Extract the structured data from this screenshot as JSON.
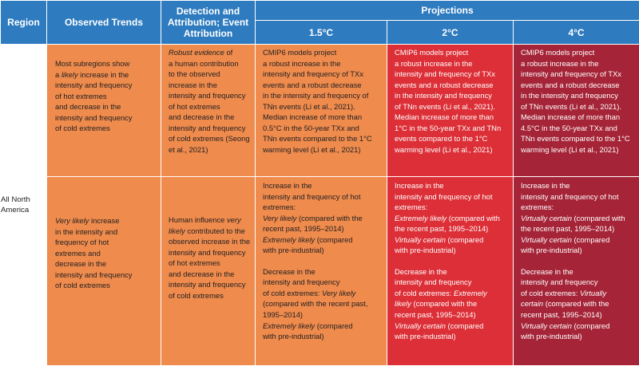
{
  "headers": {
    "region": "Region",
    "observed": "Observed Trends",
    "detection_line1": "Detection and",
    "detection_line2": "Attribution; Event",
    "detection_line3": "Attribution",
    "projections": "Projections",
    "p15": "1.5°C",
    "p2": "2°C",
    "p4": "4°C"
  },
  "region_line1": "All North",
  "region_line2": "America",
  "row1": {
    "observed": [
      "Most subregions show",
      "a likely increase in the",
      "intensity and frequency",
      "of hot extremes",
      "and decrease in the",
      "intensity and frequency",
      "of cold extremes"
    ],
    "detection": [
      "Robust evidence of",
      "a human contribution",
      "to the observed",
      "increase in the",
      "intensity and frequency",
      "of hot extremes",
      "and decrease in the",
      "intensity and frequency",
      "of cold extremes (Seong",
      "et al., 2021)"
    ],
    "p15": [
      "CMIP6 models project",
      "a robust increase in the",
      "intensity and frequency of TXx",
      "events and a robust decrease",
      "in the intensity and frequency of",
      "TNn events (Li et al., 2021).",
      "Median increase of more than",
      "0.5°C in the 50-year TXx and",
      "TNn events compared to the 1°C",
      "warming level (Li et al., 2021)"
    ],
    "p2": [
      "CMIP6 models project",
      "a robust increase in the",
      "intensity and frequency of TXx",
      "events and a robust decrease",
      "in the intensity and frequency",
      "of TNn events (Li et al., 2021).",
      "Median increase of more than",
      "1°C in the 50-year TXx and TNn",
      "events compared to the 1°C",
      "warming level (Li et al., 2021)"
    ],
    "p4": [
      "CMIP6 models project",
      "a robust increase in the",
      "intensity and frequency of TXx",
      "events and a robust decrease",
      "in the intensity and frequency",
      "of TNn events (Li et al., 2021).",
      "Median increase of more than",
      "4.5°C in the 50-year TXx and",
      "TNn events compared to the 1°C",
      "warming level (Li et al., 2021)"
    ]
  },
  "row2": {
    "observed": [
      "Very likely increase",
      "in the intensity and",
      "frequency of hot",
      "extremes and",
      "decrease in the",
      "intensity and frequency",
      "of cold extremes"
    ],
    "detection": [
      "Human influence very",
      "likely contributed to the",
      "observed increase in the",
      "intensity and frequency",
      "of hot extremes",
      "and decrease in the",
      "intensity and frequency",
      "of cold extremes"
    ],
    "p15": {
      "a": [
        "Increase in the",
        "intensity and frequency of hot",
        "extremes:"
      ],
      "a_level": "Very likely",
      "a_rest1": " (compared with the",
      "a_rest2": "recent past, 1995–2014)",
      "a_level2": "Extremely likely",
      "a_rest3": " (compared",
      "a_rest4": "with pre-industrial)",
      "b": [
        "Decrease in the",
        "intensity and frequency"
      ],
      "b_pre": "of cold extremes: ",
      "b_level": "Very likely",
      "b_rest1": "(compared with the recent past,",
      "b_rest2": "1995–2014)",
      "b_level2": "Extremely likely",
      "b_rest3": " (compared",
      "b_rest4": "with pre-industrial)"
    },
    "p2": {
      "a": [
        "Increase in the",
        "intensity and frequency of hot",
        "extremes:"
      ],
      "a_level": "Extremely likely",
      "a_rest1": " (compared with",
      "a_rest2": "the recent past, 1995–2014)",
      "a_level2": "Virtually certain",
      "a_rest3": " (compared",
      "a_rest4": "with pre-industrial)",
      "b": [
        "Decrease in the",
        "intensity and frequency"
      ],
      "b_pre": "of cold extremes: ",
      "b_level": "Extremely",
      "b_level_cont": "likely",
      "b_rest1": " (compared with the",
      "b_rest2": "recent past, 1995–2014)",
      "b_level2": "Virtually certain",
      "b_rest3": " (compared",
      "b_rest4": "with pre-industrial)"
    },
    "p4": {
      "a": [
        "Increase in the",
        "intensity and frequency of hot",
        "extremes:"
      ],
      "a_level": "Virtually certain",
      "a_rest1": " (compared with",
      "a_rest2": "the recent past, 1995–2014)",
      "a_level2": "Virtually certain",
      "a_rest3": " (compared",
      "a_rest4": "with pre-industrial)",
      "b": [
        "Decrease in the",
        "intensity and frequency"
      ],
      "b_pre": "of cold extremes: ",
      "b_level": "Virtually",
      "b_level_cont": "certain",
      "b_rest1": " (compared with the",
      "b_rest2": "recent past, 1995–2014)",
      "b_level2": "Virtually certain",
      "b_rest3": " (compared",
      "b_rest4": "with pre-industrial)"
    }
  },
  "colors": {
    "header": "#2e7bbf",
    "orange": "#ee8b4d",
    "red": "#dc2f37",
    "dark_red": "#a52437"
  }
}
